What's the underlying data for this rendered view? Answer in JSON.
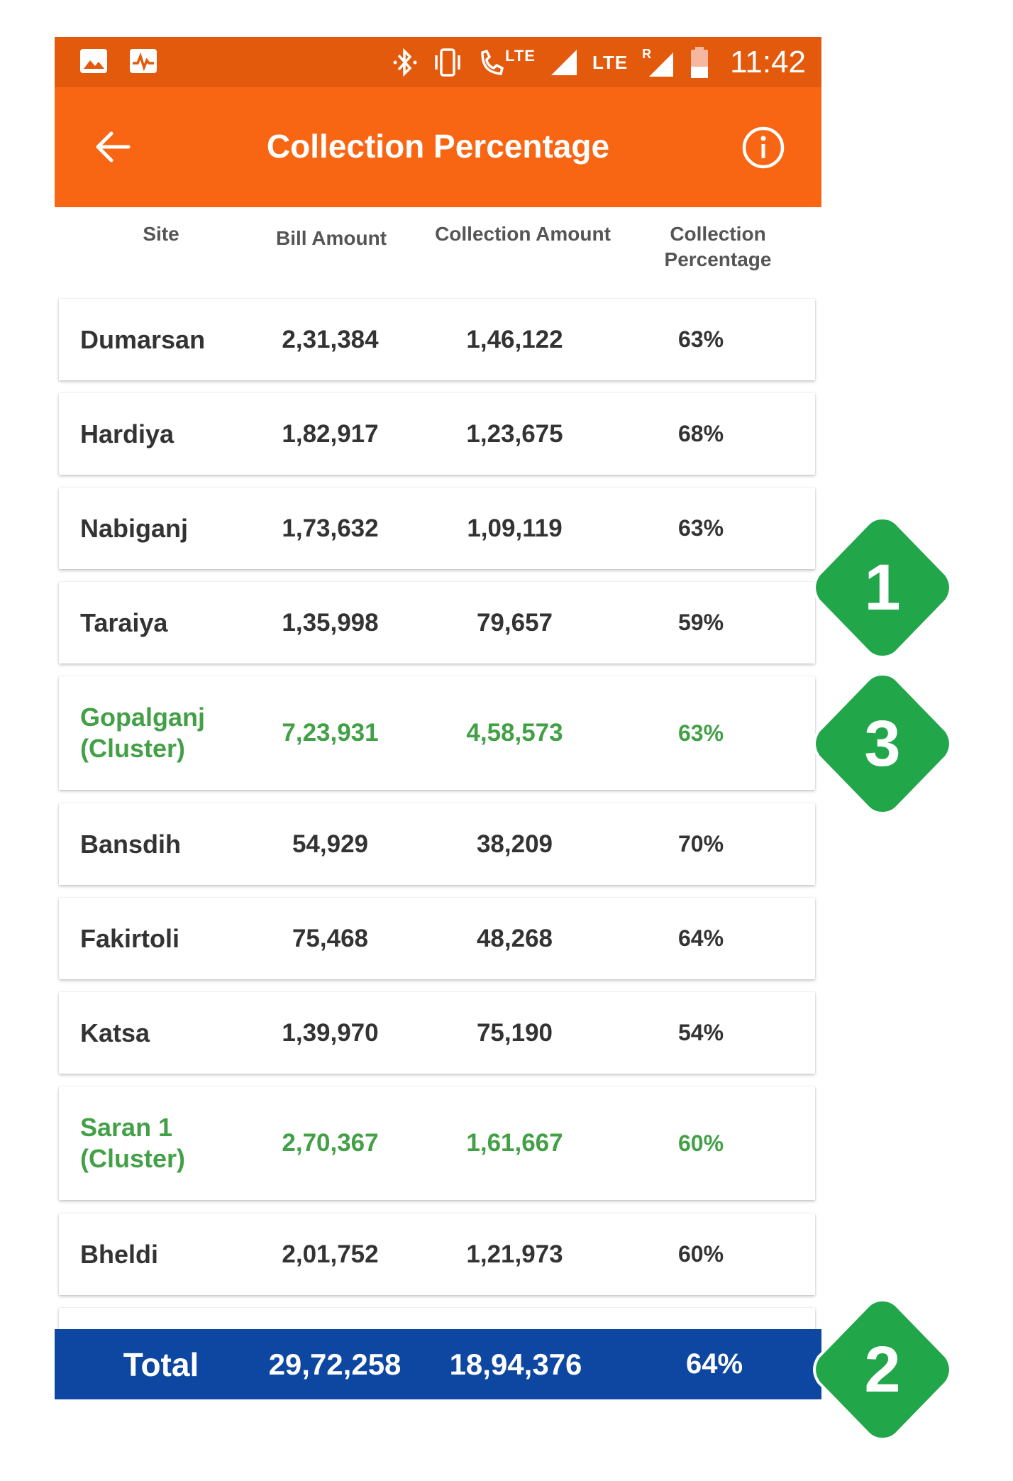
{
  "status_bar": {
    "network_label_1": "LTE",
    "network_label_2": "LTE",
    "roaming_label": "R",
    "time": "11:42"
  },
  "app_bar": {
    "title": "Collection Percentage",
    "back_icon": "arrow-left-icon",
    "info_icon": "info-icon"
  },
  "table": {
    "headers": {
      "site": "Site",
      "bill": "Bill Amount",
      "collection": "Collection Amount",
      "percentage_line1": "Collection",
      "percentage_line2": "Percentage"
    },
    "rows": [
      {
        "site_line1": "Dumarsan",
        "site_line2": "",
        "bill": "2,31,384",
        "collection": "1,46,122",
        "pct": "63%",
        "cluster": false
      },
      {
        "site_line1": "Hardiya",
        "site_line2": "",
        "bill": "1,82,917",
        "collection": "1,23,675",
        "pct": "68%",
        "cluster": false
      },
      {
        "site_line1": "Nabiganj",
        "site_line2": "",
        "bill": "1,73,632",
        "collection": "1,09,119",
        "pct": "63%",
        "cluster": false
      },
      {
        "site_line1": "Taraiya",
        "site_line2": "",
        "bill": "1,35,998",
        "collection": "79,657",
        "pct": "59%",
        "cluster": false
      },
      {
        "site_line1": "Gopalganj",
        "site_line2": "(Cluster)",
        "bill": "7,23,931",
        "collection": "4,58,573",
        "pct": "63%",
        "cluster": true
      },
      {
        "site_line1": "Bansdih",
        "site_line2": "",
        "bill": "54,929",
        "collection": "38,209",
        "pct": "70%",
        "cluster": false
      },
      {
        "site_line1": "Fakirtoli",
        "site_line2": "",
        "bill": "75,468",
        "collection": "48,268",
        "pct": "64%",
        "cluster": false
      },
      {
        "site_line1": "Katsa",
        "site_line2": "",
        "bill": "1,39,970",
        "collection": "75,190",
        "pct": "54%",
        "cluster": false
      },
      {
        "site_line1": "Saran 1",
        "site_line2": "(Cluster)",
        "bill": "2,70,367",
        "collection": "1,61,667",
        "pct": "60%",
        "cluster": true
      },
      {
        "site_line1": "Bheldi",
        "site_line2": "",
        "bill": "2,01,752",
        "collection": "1,21,973",
        "pct": "60%",
        "cluster": false
      }
    ],
    "total": {
      "label": "Total",
      "bill": "29,72,258",
      "collection": "18,94,376",
      "pct": "64%"
    }
  },
  "callouts": [
    {
      "number": "1"
    },
    {
      "number": "3"
    },
    {
      "number": "2"
    }
  ],
  "colors": {
    "status_bar": "#e35a0c",
    "app_bar": "#f86614",
    "cluster_text": "#43a047",
    "total_bar": "#0d47a1",
    "callout": "#22a64a"
  }
}
